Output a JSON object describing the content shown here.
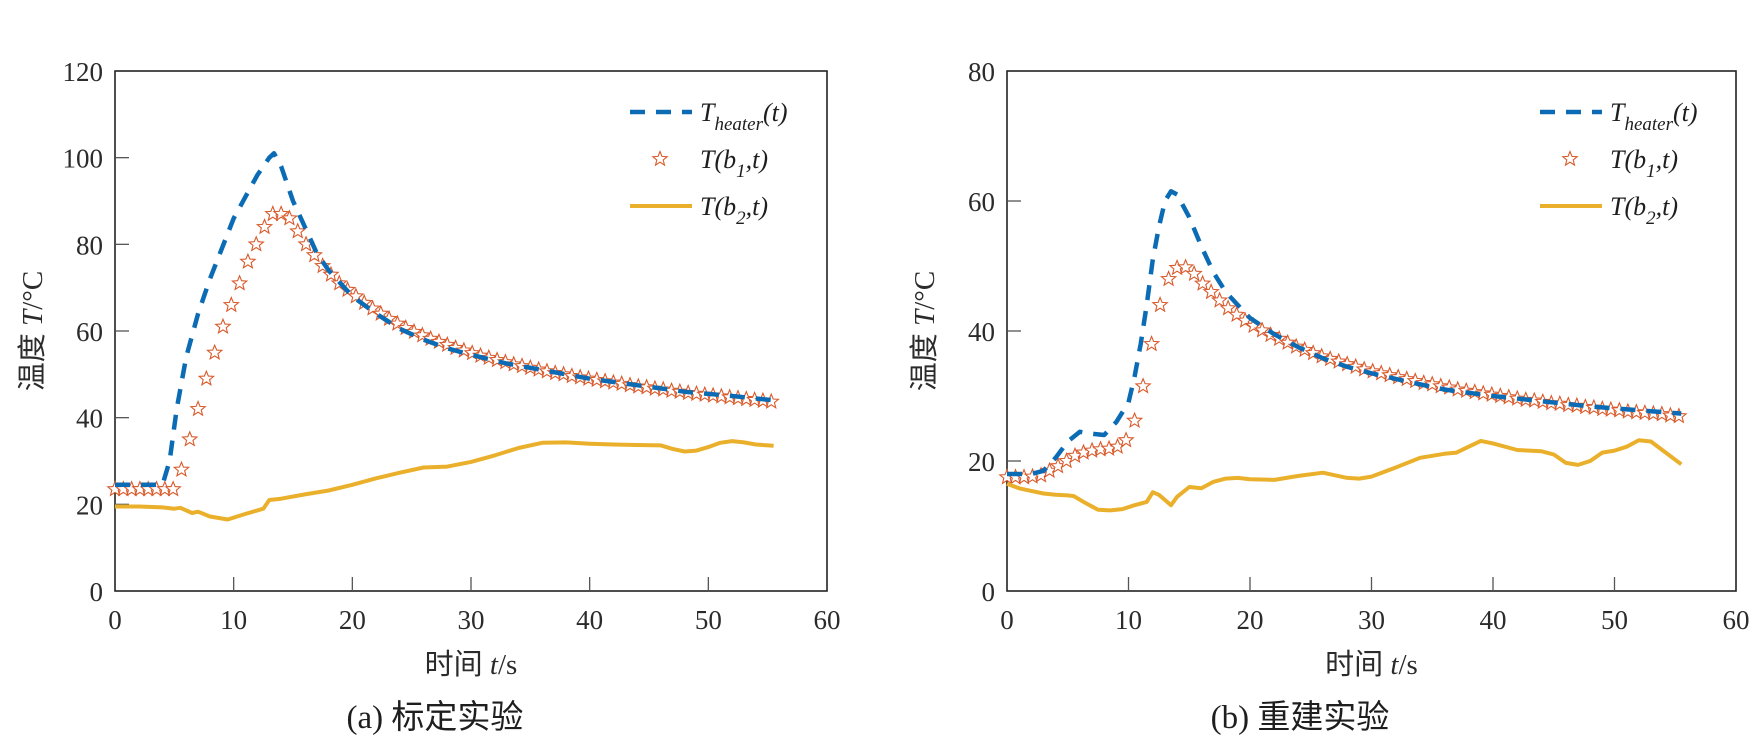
{
  "chart_data": [
    {
      "type": "line",
      "caption": "(a) 标定实验",
      "xlabel_text": "时间 ",
      "xlabel_var": "t",
      "xlabel_unit": "/s",
      "ylabel_text": "温度 ",
      "ylabel_var": "T",
      "ylabel_unit": "/°C",
      "xlim": [
        0,
        60
      ],
      "ylim": [
        0,
        120
      ],
      "xticks": [
        0,
        10,
        20,
        30,
        40,
        50,
        60
      ],
      "yticks": [
        0,
        20,
        40,
        60,
        80,
        100,
        120
      ],
      "grid": false,
      "legend_position": "top-right",
      "series": [
        {
          "name": "T_heater(t)",
          "legend_main": "T",
          "legend_sub": "heater",
          "legend_tail": "(t)",
          "style": "dashed",
          "color": "#0b6cb5",
          "x": [
            0,
            1,
            2,
            3,
            4,
            4.6,
            5.2,
            6,
            7,
            8,
            9,
            10,
            11,
            12,
            13,
            13.4,
            14,
            15,
            16,
            17,
            18,
            19,
            20,
            22,
            24,
            26,
            28,
            30,
            33,
            36,
            40,
            44,
            48,
            52,
            55.5
          ],
          "y": [
            24.5,
            24.5,
            24.5,
            24.5,
            24.5,
            30,
            42,
            54,
            64,
            72,
            79,
            86,
            91,
            96,
            100,
            101,
            98,
            90,
            84,
            78,
            74,
            71,
            68,
            64,
            60.5,
            58,
            56,
            54.5,
            52.5,
            51,
            49,
            47.5,
            46,
            45,
            44
          ]
        },
        {
          "name": "T(b1,t)",
          "legend_main": "T(b",
          "legend_sub": "1",
          "legend_tail": ",t)",
          "style": "star-markers",
          "color": "#d95a2b",
          "x": [
            0,
            0.7,
            1.4,
            2.1,
            2.8,
            3.5,
            4.2,
            4.9,
            5.6,
            6.3,
            7.0,
            7.7,
            8.4,
            9.1,
            9.8,
            10.5,
            11.2,
            11.9,
            12.6,
            13.3,
            14.0,
            14.7,
            15.4,
            16.1,
            16.8,
            17.5,
            18.2,
            18.9,
            19.6,
            20.3,
            21.0,
            21.7,
            22.4,
            23.1,
            23.8,
            24.5,
            25.2,
            25.9,
            26.6,
            27.3,
            28.0,
            28.7,
            29.4,
            30.1,
            30.8,
            31.5,
            32.2,
            32.9,
            33.6,
            34.3,
            35.0,
            35.7,
            36.4,
            37.1,
            37.8,
            38.5,
            39.2,
            39.9,
            40.6,
            41.3,
            42.0,
            42.7,
            43.4,
            44.1,
            44.8,
            45.5,
            46.2,
            46.9,
            47.6,
            48.3,
            49.0,
            49.7,
            50.4,
            51.1,
            51.8,
            52.5,
            53.2,
            53.9,
            54.6,
            55.3
          ],
          "y": [
            23.5,
            23.5,
            23.5,
            23.5,
            23.5,
            23.5,
            23.5,
            23.5,
            28,
            35,
            42,
            49,
            55,
            61,
            66,
            71,
            76,
            80,
            84,
            87,
            87,
            86,
            83,
            80,
            77.5,
            75,
            73,
            71,
            69.5,
            68,
            66.5,
            65.2,
            64,
            62.8,
            61.7,
            60.7,
            59.8,
            59,
            58.2,
            57.5,
            56.8,
            56.1,
            55.5,
            54.9,
            54.3,
            53.8,
            53.3,
            52.8,
            52.3,
            51.9,
            51.5,
            51.1,
            50.7,
            50.3,
            50,
            49.6,
            49.3,
            49,
            48.7,
            48.4,
            48.1,
            47.8,
            47.5,
            47.2,
            47,
            46.7,
            46.5,
            46.2,
            46,
            45.7,
            45.5,
            45.3,
            45.1,
            44.9,
            44.7,
            44.5,
            44.3,
            44.1,
            43.9,
            43.7
          ]
        },
        {
          "name": "T(b2,t)",
          "legend_main": "T(b",
          "legend_sub": "2",
          "legend_tail": ",t)",
          "style": "solid",
          "color": "#eab02b",
          "x": [
            0,
            2,
            4,
            5,
            5.5,
            6.5,
            7,
            8,
            9.5,
            11,
            12.5,
            13,
            14,
            16,
            18,
            20,
            22,
            24,
            26,
            28,
            30,
            32,
            34,
            36,
            38,
            40,
            42,
            44,
            46,
            47,
            48,
            49,
            50,
            51,
            52,
            53,
            54,
            55.5
          ],
          "y": [
            19.5,
            19.5,
            19.3,
            19,
            19.2,
            18,
            18.3,
            17.2,
            16.5,
            17.8,
            19,
            21,
            21.3,
            22.3,
            23.2,
            24.5,
            26,
            27.3,
            28.5,
            28.7,
            29.8,
            31.3,
            33,
            34.2,
            34.3,
            34,
            33.8,
            33.7,
            33.6,
            32.8,
            32.2,
            32.4,
            33.2,
            34.2,
            34.6,
            34.3,
            33.8,
            33.5
          ]
        }
      ]
    },
    {
      "type": "line",
      "caption": "(b) 重建实验",
      "xlabel_text": "时间 ",
      "xlabel_var": "t",
      "xlabel_unit": "/s",
      "ylabel_text": "温度 ",
      "ylabel_var": "T",
      "ylabel_unit": "/°C",
      "xlim": [
        0,
        60
      ],
      "ylim": [
        0,
        80
      ],
      "xticks": [
        0,
        10,
        20,
        30,
        40,
        50,
        60
      ],
      "yticks": [
        0,
        20,
        40,
        60,
        80
      ],
      "grid": false,
      "legend_position": "top-right",
      "series": [
        {
          "name": "T_heater(t)",
          "legend_main": "T",
          "legend_sub": "heater",
          "legend_tail": "(t)",
          "style": "dashed",
          "color": "#0b6cb5",
          "x": [
            0,
            1,
            2,
            3,
            4,
            5,
            6,
            7,
            8,
            9,
            10,
            10.5,
            11,
            11.5,
            12,
            12.5,
            13,
            13.5,
            14,
            15,
            16,
            17,
            18,
            19,
            20,
            22,
            24,
            26,
            28,
            30,
            33,
            36,
            40,
            44,
            48,
            52,
            55.5
          ],
          "y": [
            18,
            18,
            18,
            18.5,
            20.5,
            23,
            24.5,
            24.2,
            24,
            26,
            29,
            33,
            38,
            44,
            51,
            56,
            60,
            61.5,
            61,
            57.5,
            53,
            49,
            46,
            44,
            42,
            39.5,
            37.5,
            35.8,
            34.5,
            33.5,
            32.2,
            31,
            30,
            29.2,
            28.4,
            27.8,
            27.3
          ]
        },
        {
          "name": "T(b1,t)",
          "legend_main": "T(b",
          "legend_sub": "1",
          "legend_tail": ",t)",
          "style": "star-markers",
          "color": "#d95a2b",
          "x": [
            0,
            0.7,
            1.4,
            2.1,
            2.8,
            3.5,
            4.2,
            4.9,
            5.6,
            6.3,
            7.0,
            7.7,
            8.4,
            9.1,
            9.8,
            10.5,
            11.2,
            11.9,
            12.6,
            13.3,
            14.0,
            14.7,
            15.4,
            16.1,
            16.8,
            17.5,
            18.2,
            18.9,
            19.6,
            20.3,
            21.0,
            21.7,
            22.4,
            23.1,
            23.8,
            24.5,
            25.2,
            25.9,
            26.6,
            27.3,
            28.0,
            28.7,
            29.4,
            30.1,
            30.8,
            31.5,
            32.2,
            32.9,
            33.6,
            34.3,
            35.0,
            35.7,
            36.4,
            37.1,
            37.8,
            38.5,
            39.2,
            39.9,
            40.6,
            41.3,
            42.0,
            42.7,
            43.4,
            44.1,
            44.8,
            45.5,
            46.2,
            46.9,
            47.6,
            48.3,
            49.0,
            49.7,
            50.4,
            51.1,
            51.8,
            52.5,
            53.2,
            53.9,
            54.6,
            55.3
          ],
          "y": [
            17.5,
            17.5,
            17.5,
            17.6,
            17.8,
            18.5,
            19.2,
            20,
            20.8,
            21.3,
            21.6,
            21.8,
            21.9,
            22.2,
            23.2,
            26.2,
            31.5,
            38,
            44,
            48,
            49.7,
            49.8,
            48.8,
            47.3,
            46,
            44.7,
            43.5,
            42.5,
            41.6,
            40.8,
            40.1,
            39.4,
            38.8,
            38.2,
            37.6,
            37.1,
            36.6,
            36.1,
            35.7,
            35.3,
            34.9,
            34.5,
            34.1,
            33.8,
            33.5,
            33.2,
            32.9,
            32.6,
            32.3,
            32.0,
            31.8,
            31.5,
            31.3,
            31.0,
            30.8,
            30.6,
            30.4,
            30.2,
            30.0,
            29.8,
            29.6,
            29.4,
            29.3,
            29.1,
            28.9,
            28.8,
            28.6,
            28.5,
            28.3,
            28.2,
            28.0,
            27.9,
            27.8,
            27.6,
            27.5,
            27.4,
            27.3,
            27.2,
            27.0,
            26.9
          ]
        },
        {
          "name": "T(b2,t)",
          "legend_main": "T(b",
          "legend_sub": "2",
          "legend_tail": ",t)",
          "style": "solid",
          "color": "#eab02b",
          "x": [
            0,
            1,
            2,
            3,
            4,
            5,
            5.5,
            6.5,
            7.5,
            8.5,
            9.5,
            10.5,
            11.5,
            12,
            12.5,
            13,
            13.5,
            14,
            15,
            16,
            17,
            18,
            19,
            20,
            22,
            24,
            26,
            28,
            29,
            30,
            32,
            34,
            36,
            37,
            38,
            39,
            40,
            42,
            44,
            45,
            46,
            47,
            48,
            49,
            50,
            51,
            52,
            53,
            54,
            55.5
          ],
          "y": [
            16.5,
            15.8,
            15.4,
            15,
            14.8,
            14.7,
            14.6,
            13.5,
            12.5,
            12.4,
            12.6,
            13.2,
            13.7,
            15.2,
            14.8,
            14,
            13.2,
            14.5,
            16,
            15.8,
            16.8,
            17.3,
            17.4,
            17.2,
            17.1,
            17.7,
            18.2,
            17.4,
            17.3,
            17.6,
            19,
            20.5,
            21.1,
            21.3,
            22.2,
            23.1,
            22.7,
            21.7,
            21.5,
            21,
            19.7,
            19.4,
            20,
            21.3,
            21.6,
            22.2,
            23.2,
            23,
            21.6,
            19.5
          ]
        }
      ]
    }
  ]
}
